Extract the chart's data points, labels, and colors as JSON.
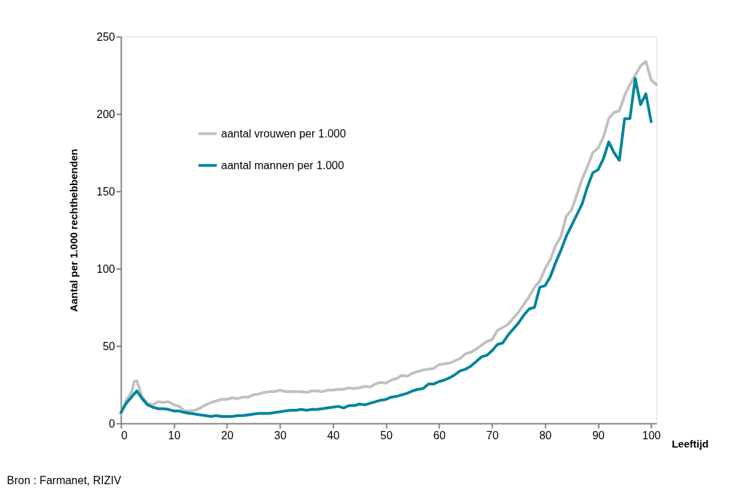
{
  "chart_data": {
    "type": "line",
    "xlabel": "Leeftijd",
    "ylabel": "Aantal per 1.000 rechthebbenden",
    "xlim": [
      0,
      101
    ],
    "xticks": [
      0,
      10,
      20,
      30,
      40,
      50,
      60,
      70,
      80,
      90,
      100
    ],
    "ylim": [
      0,
      250
    ],
    "yticks": [
      0,
      50,
      100,
      150,
      200,
      250
    ],
    "grid": false,
    "legend": "top left",
    "marker": "none",
    "line_style": "solid",
    "annotations": [
      "Bron : Farmanet, RIZIV"
    ],
    "series": [
      {
        "name": "aantal vrouwen per 1.000",
        "color": "#c0c0c0",
        "x": [
          0,
          1,
          2,
          2.5,
          3,
          4,
          5,
          6,
          7,
          8,
          9,
          10,
          11,
          12,
          13,
          14,
          15,
          16,
          17,
          18,
          19,
          20,
          21,
          22,
          23,
          24,
          25,
          26,
          27,
          28,
          29,
          30,
          31,
          32,
          33,
          34,
          35,
          36,
          37,
          38,
          39,
          40,
          41,
          42,
          43,
          44,
          45,
          46,
          47,
          48,
          49,
          50,
          51,
          52,
          53,
          54,
          55,
          56,
          57,
          58,
          59,
          60,
          61,
          62,
          63,
          64,
          65,
          66,
          67,
          68,
          69,
          70,
          71,
          72,
          73,
          74,
          75,
          76,
          77,
          78,
          79,
          80,
          81,
          82,
          83,
          84,
          85,
          86,
          87,
          88,
          89,
          90,
          91,
          92,
          93,
          94,
          95,
          96,
          97,
          98,
          99,
          100,
          101
        ],
        "values": [
          6,
          15,
          20,
          27,
          27.5,
          17,
          13,
          12,
          14,
          13.5,
          14,
          12,
          11,
          8,
          8,
          8.5,
          10,
          12,
          13.5,
          14.5,
          15.5,
          15.5,
          16.5,
          16,
          17,
          17,
          18.5,
          19,
          20,
          20.5,
          20.5,
          21.5,
          20.5,
          20.5,
          20.5,
          20.5,
          20,
          21,
          21,
          20.5,
          21.5,
          21.5,
          22,
          22,
          23,
          22.5,
          23,
          24,
          23.5,
          25.5,
          26.5,
          26,
          28,
          29,
          31,
          30.5,
          32.5,
          33.5,
          34.5,
          35,
          35.5,
          38,
          38.5,
          39,
          40.5,
          42,
          45,
          46,
          48,
          50.5,
          53,
          54,
          60,
          62,
          64,
          68,
          72,
          77,
          82,
          88,
          92,
          100,
          106,
          115,
          121,
          134,
          138,
          148,
          158,
          166,
          175,
          178,
          185,
          197,
          201,
          202,
          212,
          219,
          225,
          231,
          234,
          222,
          219
        ]
      },
      {
        "name": "aantal mannen per 1.000",
        "color": "#00849c",
        "x": [
          0,
          1,
          2,
          3,
          4,
          5,
          6,
          7,
          8,
          9,
          10,
          11,
          12,
          13,
          14,
          15,
          16,
          17,
          18,
          19,
          20,
          21,
          22,
          23,
          24,
          25,
          26,
          27,
          28,
          29,
          30,
          31,
          32,
          33,
          34,
          35,
          36,
          37,
          38,
          39,
          40,
          41,
          42,
          43,
          44,
          45,
          46,
          47,
          48,
          49,
          50,
          51,
          52,
          53,
          54,
          55,
          56,
          57,
          58,
          59,
          60,
          61,
          62,
          63,
          64,
          65,
          66,
          67,
          68,
          69,
          70,
          71,
          72,
          73,
          74,
          75,
          76,
          77,
          78,
          79,
          80,
          81,
          82,
          83,
          84,
          85,
          86,
          87,
          88,
          89,
          90,
          91,
          92,
          93,
          94,
          95,
          96,
          97,
          98,
          99,
          100
        ],
        "values": [
          7,
          13,
          17,
          21,
          16,
          12,
          10.5,
          9.5,
          9.5,
          9,
          8,
          8,
          7,
          6.5,
          6,
          5.5,
          5,
          4.5,
          5,
          4.5,
          4.5,
          4.5,
          5,
          5,
          5.5,
          6,
          6.5,
          6.5,
          6.5,
          7,
          7.5,
          8,
          8.5,
          8.5,
          9,
          8.5,
          9,
          9,
          9.5,
          10,
          10.5,
          11,
          10,
          11.5,
          11.5,
          12.5,
          12,
          13,
          14,
          15,
          15.5,
          17,
          17.5,
          18.5,
          19.5,
          21,
          22,
          22.5,
          25.5,
          25.5,
          27,
          28,
          29.5,
          31.5,
          34,
          35,
          37,
          40,
          43,
          44,
          47,
          51,
          52,
          57,
          61,
          65,
          70,
          74,
          75,
          88,
          89,
          95,
          104,
          112,
          121,
          128,
          135,
          142,
          153,
          162,
          164,
          171,
          182,
          175,
          170,
          197,
          197,
          223,
          206,
          213,
          195
        ]
      }
    ]
  }
}
